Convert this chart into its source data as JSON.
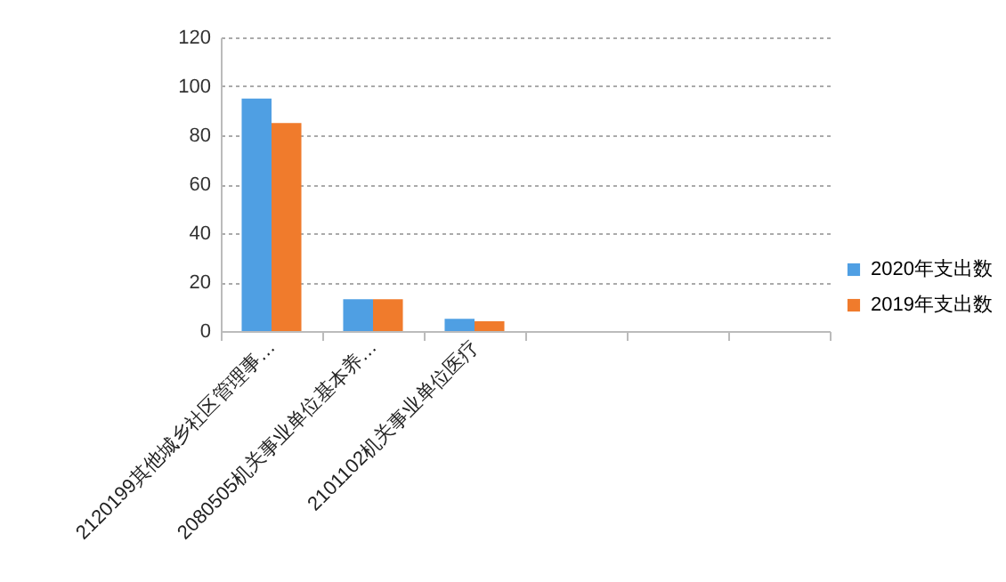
{
  "chart_data": {
    "type": "bar",
    "categories": [
      "2120199其他城乡社区管理事…",
      "2080505机关事业单位基本养…",
      "2101102机关事业单位医疗",
      null,
      null,
      null
    ],
    "series": [
      {
        "name": "2020年支出数",
        "color": "#4f9fe3",
        "values": [
          95,
          13,
          5,
          null,
          null,
          null
        ]
      },
      {
        "name": "2019年支出数",
        "color": "#f07b2c",
        "values": [
          85,
          13,
          4,
          null,
          null,
          null
        ]
      }
    ],
    "ylim": [
      0,
      120
    ],
    "yticks": [
      0,
      20,
      40,
      60,
      80,
      100,
      120
    ],
    "grid": "y",
    "legend": "right"
  }
}
